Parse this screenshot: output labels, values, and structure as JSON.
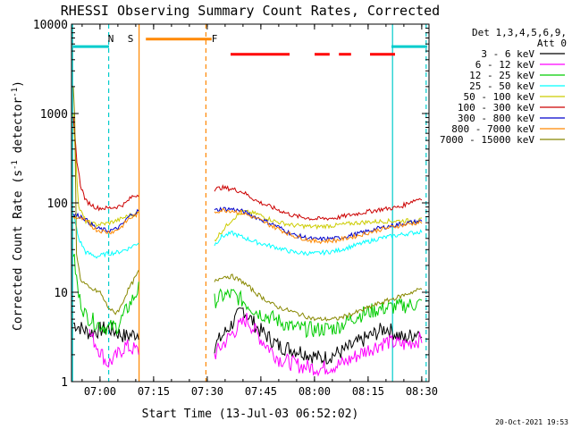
{
  "chart_data": {
    "type": "line",
    "title": "RHESSI Observing Summary Count Rates, Corrected",
    "xlabel": "Start Time (13-Jul-03 06:52:02)",
    "ylabel_main": "Corrected Count Rate (s",
    "ylabel_exp1": "-1",
    "ylabel_mid": " detector",
    "ylabel_exp2": "-1",
    "ylabel_end": ")",
    "y_scale": "log",
    "ylim": [
      1,
      10000
    ],
    "xlim_minutes": [
      0,
      100
    ],
    "x_ticks": [
      {
        "label": "07:00",
        "minute": 7.97
      },
      {
        "label": "07:15",
        "minute": 22.97
      },
      {
        "label": "07:30",
        "minute": 37.97
      },
      {
        "label": "07:45",
        "minute": 52.97
      },
      {
        "label": "08:00",
        "minute": 67.97
      },
      {
        "label": "08:15",
        "minute": 82.97
      },
      {
        "label": "08:30",
        "minute": 97.97
      }
    ],
    "y_ticks": [
      {
        "label": "1",
        "value": 1
      },
      {
        "label": "10",
        "value": 10
      },
      {
        "label": "100",
        "value": 100
      },
      {
        "label": "1000",
        "value": 1000
      },
      {
        "label": "10000",
        "value": 10000
      }
    ],
    "detectors_label": "Det 1,3,4,5,6,9,",
    "attenuator_label": "Att 0",
    "legend_position": "right",
    "series": [
      {
        "name": "3 - 6 keV",
        "color": "#000000",
        "segments": [
          [
            [
              0.5,
              4.5
            ],
            [
              5,
              3.5
            ],
            [
              10,
              4
            ],
            [
              15,
              3.2
            ],
            [
              18.8,
              3.5
            ]
          ],
          [
            [
              40,
              2.5
            ],
            [
              45,
              4.5
            ],
            [
              48,
              6.5
            ],
            [
              52,
              4
            ],
            [
              58,
              2.5
            ],
            [
              64,
              2.2
            ],
            [
              70,
              1.8
            ],
            [
              76,
              2.2
            ],
            [
              82,
              3
            ],
            [
              88,
              4
            ],
            [
              93,
              3
            ],
            [
              98,
              3.8
            ]
          ]
        ]
      },
      {
        "name": "6 - 12 keV",
        "color": "#ff00ff",
        "segments": [
          [
            [
              5,
              3.5
            ],
            [
              8,
              2.2
            ],
            [
              10,
              1.6
            ],
            [
              12,
              1.8
            ],
            [
              15,
              2.5
            ],
            [
              18.8,
              2.2
            ]
          ],
          [
            [
              40,
              2
            ],
            [
              45,
              3.5
            ],
            [
              49,
              5
            ],
            [
              53,
              3
            ],
            [
              58,
              1.8
            ],
            [
              64,
              1.5
            ],
            [
              70,
              1.4
            ],
            [
              76,
              1.6
            ],
            [
              82,
              2.2
            ],
            [
              88,
              2.8
            ],
            [
              93,
              2.6
            ],
            [
              98,
              3
            ]
          ]
        ]
      },
      {
        "name": "12 - 25 keV",
        "color": "#00cc00",
        "segments": [
          [
            [
              0.5,
              28
            ],
            [
              2,
              9
            ],
            [
              4,
              5.5
            ],
            [
              7,
              4.5
            ],
            [
              10,
              4
            ],
            [
              13,
              4.2
            ],
            [
              16,
              7
            ],
            [
              18.8,
              11
            ]
          ],
          [
            [
              40,
              8
            ],
            [
              42,
              9
            ],
            [
              45,
              9.5
            ],
            [
              48,
              8
            ],
            [
              52,
              6
            ],
            [
              57,
              5
            ],
            [
              62,
              4
            ],
            [
              68,
              3.8
            ],
            [
              74,
              4
            ],
            [
              80,
              5.5
            ],
            [
              86,
              6.5
            ],
            [
              92,
              7
            ],
            [
              98,
              7.5
            ]
          ]
        ]
      },
      {
        "name": "25 - 50 keV",
        "color": "#00ffff",
        "segments": [
          [
            [
              0.5,
              75
            ],
            [
              2,
              40
            ],
            [
              4,
              28
            ],
            [
              7,
              25
            ],
            [
              10,
              27
            ],
            [
              13,
              28
            ],
            [
              16,
              31
            ],
            [
              18.8,
              36
            ]
          ],
          [
            [
              40,
              34
            ],
            [
              42,
              42
            ],
            [
              45,
              46
            ],
            [
              48,
              41
            ],
            [
              52,
              36
            ],
            [
              57,
              32
            ],
            [
              62,
              28
            ],
            [
              68,
              27
            ],
            [
              74,
              29
            ],
            [
              80,
              34
            ],
            [
              86,
              40
            ],
            [
              92,
              44
            ],
            [
              98,
              48
            ]
          ]
        ]
      },
      {
        "name": "50 - 100 keV",
        "color": "#cccc00",
        "segments": [
          [
            [
              0.5,
              950
            ],
            [
              2,
              90
            ],
            [
              4,
              62
            ],
            [
              7,
              57
            ],
            [
              10,
              59
            ],
            [
              13,
              64
            ],
            [
              16,
              72
            ],
            [
              18.8,
              77
            ]
          ],
          [
            [
              40,
              38
            ],
            [
              42,
              48
            ],
            [
              45,
              66
            ],
            [
              48,
              80
            ],
            [
              52,
              75
            ],
            [
              57,
              62
            ],
            [
              62,
              56
            ],
            [
              68,
              54
            ],
            [
              74,
              56
            ],
            [
              80,
              60
            ],
            [
              86,
              62
            ],
            [
              92,
              63
            ],
            [
              98,
              64
            ]
          ]
        ]
      },
      {
        "name": "100 - 300 keV",
        "color": "#cc0000",
        "segments": [
          [
            [
              0.5,
              900
            ],
            [
              1.5,
              300
            ],
            [
              2.5,
              160
            ],
            [
              4,
              105
            ],
            [
              7,
              88
            ],
            [
              10,
              87
            ],
            [
              13,
              91
            ],
            [
              15,
              98
            ],
            [
              17,
              118
            ],
            [
              18.8,
              124
            ]
          ],
          [
            [
              40,
              142
            ],
            [
              42,
              148
            ],
            [
              45,
              143
            ],
            [
              48,
              132
            ],
            [
              52,
              104
            ],
            [
              57,
              86
            ],
            [
              62,
              72
            ],
            [
              68,
              66
            ],
            [
              74,
              68
            ],
            [
              80,
              76
            ],
            [
              86,
              84
            ],
            [
              92,
              90
            ],
            [
              95,
              104
            ],
            [
              98,
              114
            ]
          ]
        ]
      },
      {
        "name": "300 - 800 keV",
        "color": "#0000cc",
        "segments": [
          [
            [
              0.5,
              74
            ],
            [
              3,
              70
            ],
            [
              5,
              60
            ],
            [
              7,
              52
            ],
            [
              10,
              49
            ],
            [
              12,
              50
            ],
            [
              14,
              56
            ],
            [
              16,
              70
            ],
            [
              18.8,
              82
            ]
          ],
          [
            [
              40,
              82
            ],
            [
              42,
              86
            ],
            [
              45,
              85
            ],
            [
              48,
              80
            ],
            [
              52,
              68
            ],
            [
              57,
              56
            ],
            [
              62,
              44
            ],
            [
              68,
              39
            ],
            [
              74,
              40
            ],
            [
              80,
              45
            ],
            [
              86,
              52
            ],
            [
              92,
              58
            ],
            [
              98,
              63
            ]
          ]
        ]
      },
      {
        "name": "800 - 7000 keV",
        "color": "#ff8800",
        "segments": [
          [
            [
              0.5,
              70
            ],
            [
              3,
              66
            ],
            [
              5,
              58
            ],
            [
              7,
              50
            ],
            [
              10,
              47
            ],
            [
              12,
              48
            ],
            [
              14,
              54
            ],
            [
              16,
              66
            ],
            [
              18.8,
              76
            ]
          ],
          [
            [
              40,
              79
            ],
            [
              42,
              83
            ],
            [
              45,
              82
            ],
            [
              48,
              77
            ],
            [
              52,
              66
            ],
            [
              57,
              53
            ],
            [
              62,
              43
            ],
            [
              68,
              37
            ],
            [
              74,
              38
            ],
            [
              80,
              43
            ],
            [
              86,
              50
            ],
            [
              92,
              56
            ],
            [
              98,
              61
            ]
          ]
        ]
      },
      {
        "name": "7000 - 15000 keV",
        "color": "#888800",
        "segments": [
          [
            [
              0.5,
              1900
            ],
            [
              0.9,
              900
            ],
            [
              1.4,
              28
            ],
            [
              2.5,
              14
            ],
            [
              5,
              11
            ],
            [
              8,
              10
            ],
            [
              10,
              7
            ],
            [
              12,
              5.8
            ],
            [
              13.5,
              6.5
            ],
            [
              15.5,
              10
            ],
            [
              18.8,
              17
            ]
          ],
          [
            [
              40,
              13
            ],
            [
              42,
              15
            ],
            [
              45,
              15
            ],
            [
              48,
              13
            ],
            [
              52,
              9.5
            ],
            [
              57,
              7
            ],
            [
              62,
              6
            ],
            [
              68,
              5
            ],
            [
              74,
              5
            ],
            [
              80,
              6
            ],
            [
              86,
              7.5
            ],
            [
              92,
              9
            ],
            [
              98,
              11
            ]
          ]
        ]
      }
    ],
    "annotations": [
      {
        "label": "N",
        "color": "#00cccc",
        "x_minute": 11
      },
      {
        "label": "S",
        "color": "#ff8800",
        "x_minute": 16.5
      },
      {
        "label": "F",
        "color": "#ff0000",
        "x_minute": 40
      }
    ],
    "event_bars": [
      {
        "name": "night-bar-left",
        "color": "#00cccc",
        "y_value": 5600,
        "x_start": 0.5,
        "x_end": 10.5
      },
      {
        "name": "night-bar-right",
        "color": "#00cccc",
        "y_value": 5600,
        "x_start": 89.5,
        "x_end": 99.5
      },
      {
        "name": "saa-bar",
        "color": "#ff8800",
        "y_value": 6800,
        "x_start": 20.8,
        "x_end": 39.2
      },
      {
        "name": "flare-bar-1",
        "color": "#ff0000",
        "y_value": 4600,
        "x_start": 44.5,
        "x_end": 61
      },
      {
        "name": "flare-bar-2",
        "color": "#ff0000",
        "y_value": 4600,
        "x_start": 68,
        "x_end": 72.2
      },
      {
        "name": "flare-bar-3",
        "color": "#ff0000",
        "y_value": 4600,
        "x_start": 74.8,
        "x_end": 78.2
      },
      {
        "name": "flare-bar-4",
        "color": "#ff0000",
        "y_value": 4600,
        "x_start": 83.5,
        "x_end": 90.5
      }
    ],
    "vertical_markers": [
      {
        "name": "night-start-line",
        "color": "#00cccc",
        "x_minute": 0.3,
        "style": "solid"
      },
      {
        "name": "night-end-line",
        "color": "#00cccc",
        "x_minute": 10.4,
        "style": "dashed"
      },
      {
        "name": "saa-start-line",
        "color": "#ff8800",
        "x_minute": 18.9,
        "style": "solid"
      },
      {
        "name": "saa-end-line",
        "color": "#ff8800",
        "x_minute": 37.6,
        "style": "dashed"
      },
      {
        "name": "night-start-line-2",
        "color": "#00cccc",
        "x_minute": 89.8,
        "style": "solid"
      },
      {
        "name": "night-end-line-2",
        "color": "#00cccc",
        "x_minute": 99.2,
        "style": "dashed"
      }
    ],
    "timestamp": "20-Oct-2021 19:53"
  }
}
